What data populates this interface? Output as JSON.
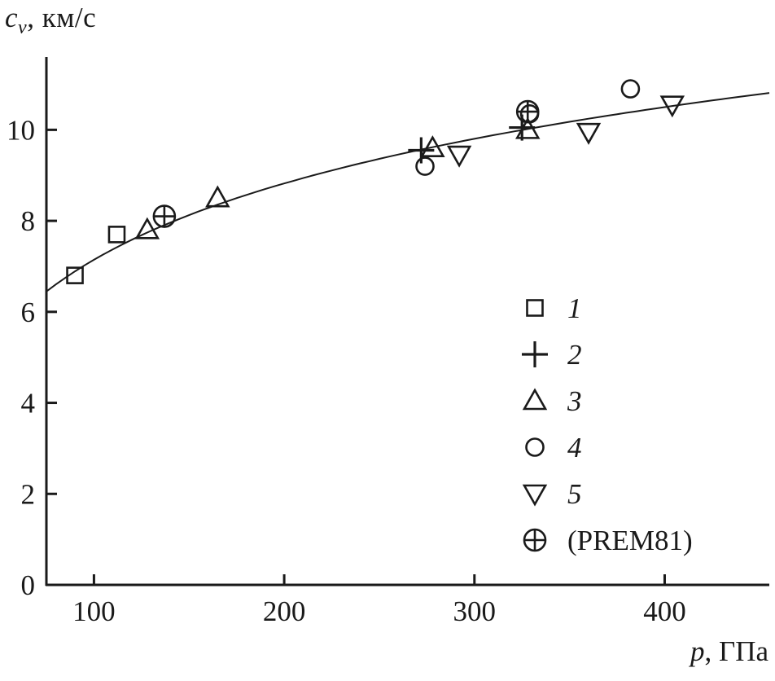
{
  "figure": {
    "ink_color": "#1a1a1a",
    "background": "#ffffff"
  },
  "axes": {
    "y": {
      "variable": "c",
      "subscript": "v",
      "rest": ", км/с"
    },
    "x": {
      "variable": "p",
      "rest": ", ГПа"
    }
  },
  "chart_data": {
    "type": "scatter",
    "title": "",
    "xlabel": "p, ГПа",
    "ylabel": "cv, км/с",
    "x_unit": "ГПа",
    "y_unit": "км/с",
    "xlim": [
      75,
      455
    ],
    "ylim": [
      0,
      11.6
    ],
    "x_ticks": [
      100,
      200,
      300,
      400
    ],
    "y_ticks": [
      0,
      2,
      4,
      6,
      8,
      10
    ],
    "grid": false,
    "legend_position": "inset lower right",
    "series": [
      {
        "name": "1",
        "legend_label": "1",
        "legend_italic": true,
        "marker": "square",
        "points": [
          [
            90,
            6.8
          ],
          [
            112,
            7.7
          ]
        ]
      },
      {
        "name": "2",
        "legend_label": "2",
        "legend_italic": true,
        "marker": "plus",
        "points": [
          [
            272,
            9.55
          ],
          [
            325,
            10.05
          ]
        ]
      },
      {
        "name": "3",
        "legend_label": "3",
        "legend_italic": true,
        "marker": "triangle-up",
        "points": [
          [
            128,
            7.8
          ],
          [
            165,
            8.5
          ],
          [
            278,
            9.6
          ],
          [
            328,
            10.0
          ]
        ]
      },
      {
        "name": "4",
        "legend_label": "4",
        "legend_italic": true,
        "marker": "circle",
        "points": [
          [
            274,
            9.2
          ],
          [
            329,
            10.35
          ],
          [
            382,
            10.9
          ]
        ]
      },
      {
        "name": "5",
        "legend_label": "5",
        "legend_italic": true,
        "marker": "triangle-down",
        "points": [
          [
            292,
            9.45
          ],
          [
            360,
            9.95
          ],
          [
            404,
            10.55
          ]
        ]
      },
      {
        "name": "PREM81",
        "legend_label": "(PREM81)",
        "legend_italic": false,
        "marker": "circle-plus",
        "points": [
          [
            137,
            8.1
          ],
          [
            328,
            10.4
          ]
        ]
      }
    ],
    "fit_curve": {
      "model": "c = a + b·ln(p)",
      "a": -4.0,
      "b": 2.42,
      "p_min": 75,
      "p_max": 455
    }
  }
}
